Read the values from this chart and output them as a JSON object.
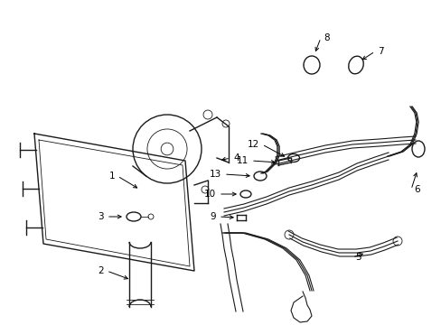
{
  "bg_color": "#ffffff",
  "line_color": "#1a1a1a",
  "label_color": "#000000",
  "figsize": [
    4.89,
    3.6
  ],
  "dpi": 100,
  "lw_main": 1.0,
  "lw_thin": 0.6,
  "lw_thick": 1.4,
  "lw_hose": 1.0,
  "font_size": 7.5
}
